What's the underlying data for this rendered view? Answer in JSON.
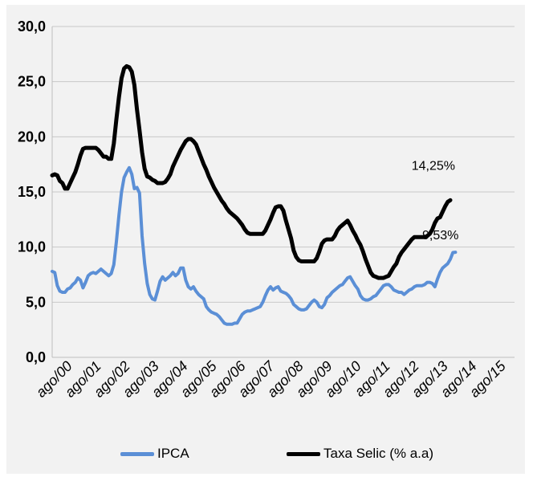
{
  "chart_data": {
    "type": "line",
    "yticks": [
      "0,0",
      "5,0",
      "10,0",
      "15,0",
      "20,0",
      "25,0",
      "30,0"
    ],
    "ylim": [
      0,
      30
    ],
    "grid": "horizontal",
    "xticks": [
      "ago/00",
      "ago/01",
      "ago/02",
      "ago/03",
      "ago/04",
      "ago/05",
      "ago/06",
      "ago/07",
      "ago/08",
      "ago/09",
      "ago/10",
      "ago/11",
      "ago/12",
      "ago/13",
      "ago/14",
      "ago/15"
    ],
    "xlim": [
      0,
      180
    ],
    "legend_position": "bottom",
    "series": [
      {
        "name": "IPCA",
        "color": "#5b8fd6",
        "points": [
          [
            0,
            7.8
          ],
          [
            1,
            7.7
          ],
          [
            2,
            6.5
          ],
          [
            3,
            6.0
          ],
          [
            4,
            5.9
          ],
          [
            5,
            5.9
          ],
          [
            6,
            6.2
          ],
          [
            7,
            6.3
          ],
          [
            8,
            6.6
          ],
          [
            9,
            6.8
          ],
          [
            10,
            7.2
          ],
          [
            11,
            7.0
          ],
          [
            12,
            6.3
          ],
          [
            13,
            6.8
          ],
          [
            14,
            7.4
          ],
          [
            15,
            7.6
          ],
          [
            16,
            7.7
          ],
          [
            17,
            7.6
          ],
          [
            18,
            7.8
          ],
          [
            19,
            8.0
          ],
          [
            20,
            7.8
          ],
          [
            21,
            7.6
          ],
          [
            22,
            7.4
          ],
          [
            23,
            7.6
          ],
          [
            24,
            8.4
          ],
          [
            25,
            10.5
          ],
          [
            26,
            12.9
          ],
          [
            27,
            15.0
          ],
          [
            28,
            16.3
          ],
          [
            29,
            16.8
          ],
          [
            30,
            17.2
          ],
          [
            31,
            16.6
          ],
          [
            32,
            15.3
          ],
          [
            33,
            15.4
          ],
          [
            34,
            14.9
          ],
          [
            35,
            11.0
          ],
          [
            36,
            8.5
          ],
          [
            37,
            6.7
          ],
          [
            38,
            5.7
          ],
          [
            39,
            5.3
          ],
          [
            40,
            5.2
          ],
          [
            41,
            6.0
          ],
          [
            42,
            6.9
          ],
          [
            43,
            7.3
          ],
          [
            44,
            7.0
          ],
          [
            45,
            7.2
          ],
          [
            46,
            7.4
          ],
          [
            47,
            7.7
          ],
          [
            48,
            7.4
          ],
          [
            49,
            7.6
          ],
          [
            50,
            8.1
          ],
          [
            51,
            8.1
          ],
          [
            52,
            7.0
          ],
          [
            53,
            6.4
          ],
          [
            54,
            6.2
          ],
          [
            55,
            6.4
          ],
          [
            56,
            6.0
          ],
          [
            57,
            5.7
          ],
          [
            58,
            5.5
          ],
          [
            59,
            5.3
          ],
          [
            60,
            4.6
          ],
          [
            61,
            4.3
          ],
          [
            62,
            4.1
          ],
          [
            63,
            4.0
          ],
          [
            64,
            3.9
          ],
          [
            65,
            3.7
          ],
          [
            66,
            3.4
          ],
          [
            67,
            3.1
          ],
          [
            68,
            3.0
          ],
          [
            69,
            3.0
          ],
          [
            70,
            3.0
          ],
          [
            71,
            3.1
          ],
          [
            72,
            3.1
          ],
          [
            73,
            3.5
          ],
          [
            74,
            3.9
          ],
          [
            75,
            4.1
          ],
          [
            76,
            4.2
          ],
          [
            77,
            4.2
          ],
          [
            78,
            4.3
          ],
          [
            79,
            4.4
          ],
          [
            80,
            4.5
          ],
          [
            81,
            4.6
          ],
          [
            82,
            5.0
          ],
          [
            83,
            5.6
          ],
          [
            84,
            6.1
          ],
          [
            85,
            6.4
          ],
          [
            86,
            6.1
          ],
          [
            87,
            6.3
          ],
          [
            88,
            6.4
          ],
          [
            89,
            6.0
          ],
          [
            90,
            5.9
          ],
          [
            91,
            5.8
          ],
          [
            92,
            5.6
          ],
          [
            93,
            5.3
          ],
          [
            94,
            4.8
          ],
          [
            95,
            4.6
          ],
          [
            96,
            4.4
          ],
          [
            97,
            4.3
          ],
          [
            98,
            4.3
          ],
          [
            99,
            4.4
          ],
          [
            100,
            4.7
          ],
          [
            101,
            5.0
          ],
          [
            102,
            5.2
          ],
          [
            103,
            5.0
          ],
          [
            104,
            4.6
          ],
          [
            105,
            4.5
          ],
          [
            106,
            4.8
          ],
          [
            107,
            5.4
          ],
          [
            108,
            5.6
          ],
          [
            109,
            5.9
          ],
          [
            110,
            6.1
          ],
          [
            111,
            6.3
          ],
          [
            112,
            6.5
          ],
          [
            113,
            6.6
          ],
          [
            114,
            6.9
          ],
          [
            115,
            7.2
          ],
          [
            116,
            7.3
          ],
          [
            117,
            6.9
          ],
          [
            118,
            6.5
          ],
          [
            119,
            6.2
          ],
          [
            120,
            5.6
          ],
          [
            121,
            5.3
          ],
          [
            122,
            5.2
          ],
          [
            123,
            5.2
          ],
          [
            124,
            5.3
          ],
          [
            125,
            5.5
          ],
          [
            126,
            5.6
          ],
          [
            127,
            5.9
          ],
          [
            128,
            6.2
          ],
          [
            129,
            6.5
          ],
          [
            130,
            6.6
          ],
          [
            131,
            6.6
          ],
          [
            132,
            6.4
          ],
          [
            133,
            6.1
          ],
          [
            134,
            6.0
          ],
          [
            135,
            5.9
          ],
          [
            136,
            5.9
          ],
          [
            137,
            5.7
          ],
          [
            138,
            5.9
          ],
          [
            139,
            6.1
          ],
          [
            140,
            6.2
          ],
          [
            141,
            6.4
          ],
          [
            142,
            6.5
          ],
          [
            143,
            6.5
          ],
          [
            144,
            6.5
          ],
          [
            145,
            6.6
          ],
          [
            146,
            6.8
          ],
          [
            147,
            6.8
          ],
          [
            148,
            6.7
          ],
          [
            149,
            6.4
          ],
          [
            150,
            7.1
          ],
          [
            151,
            7.7
          ],
          [
            152,
            8.1
          ],
          [
            153,
            8.3
          ],
          [
            154,
            8.5
          ],
          [
            155,
            8.9
          ],
          [
            156,
            9.5
          ],
          [
            157,
            9.53
          ]
        ]
      },
      {
        "name": "Taxa Selic (% a.a)",
        "color": "#000000",
        "points": [
          [
            0,
            16.5
          ],
          [
            1,
            16.6
          ],
          [
            2,
            16.5
          ],
          [
            3,
            16.0
          ],
          [
            4,
            15.8
          ],
          [
            5,
            15.3
          ],
          [
            6,
            15.3
          ],
          [
            7,
            15.8
          ],
          [
            8,
            16.3
          ],
          [
            9,
            16.8
          ],
          [
            10,
            17.5
          ],
          [
            11,
            18.3
          ],
          [
            12,
            18.9
          ],
          [
            13,
            19.0
          ],
          [
            14,
            19.0
          ],
          [
            15,
            19.0
          ],
          [
            16,
            19.0
          ],
          [
            17,
            19.0
          ],
          [
            18,
            18.8
          ],
          [
            19,
            18.5
          ],
          [
            20,
            18.2
          ],
          [
            21,
            18.2
          ],
          [
            22,
            18.0
          ],
          [
            23,
            18.0
          ],
          [
            24,
            19.4
          ],
          [
            25,
            21.6
          ],
          [
            26,
            23.6
          ],
          [
            27,
            25.3
          ],
          [
            28,
            26.2
          ],
          [
            29,
            26.4
          ],
          [
            30,
            26.3
          ],
          [
            31,
            25.9
          ],
          [
            32,
            24.7
          ],
          [
            33,
            22.5
          ],
          [
            34,
            20.6
          ],
          [
            35,
            18.6
          ],
          [
            36,
            17.1
          ],
          [
            37,
            16.4
          ],
          [
            38,
            16.3
          ],
          [
            39,
            16.1
          ],
          [
            40,
            16.0
          ],
          [
            41,
            15.8
          ],
          [
            42,
            15.8
          ],
          [
            43,
            15.8
          ],
          [
            44,
            15.9
          ],
          [
            45,
            16.2
          ],
          [
            46,
            16.6
          ],
          [
            47,
            17.3
          ],
          [
            48,
            17.8
          ],
          [
            49,
            18.3
          ],
          [
            50,
            18.8
          ],
          [
            51,
            19.2
          ],
          [
            52,
            19.6
          ],
          [
            53,
            19.8
          ],
          [
            54,
            19.8
          ],
          [
            55,
            19.6
          ],
          [
            56,
            19.3
          ],
          [
            57,
            18.7
          ],
          [
            58,
            18.1
          ],
          [
            59,
            17.5
          ],
          [
            60,
            17.0
          ],
          [
            61,
            16.4
          ],
          [
            62,
            15.9
          ],
          [
            63,
            15.4
          ],
          [
            64,
            15.0
          ],
          [
            65,
            14.6
          ],
          [
            66,
            14.2
          ],
          [
            67,
            13.9
          ],
          [
            68,
            13.5
          ],
          [
            69,
            13.2
          ],
          [
            70,
            13.0
          ],
          [
            71,
            12.8
          ],
          [
            72,
            12.6
          ],
          [
            73,
            12.3
          ],
          [
            74,
            12.0
          ],
          [
            75,
            11.6
          ],
          [
            76,
            11.3
          ],
          [
            77,
            11.2
          ],
          [
            78,
            11.2
          ],
          [
            79,
            11.2
          ],
          [
            80,
            11.2
          ],
          [
            81,
            11.2
          ],
          [
            82,
            11.2
          ],
          [
            83,
            11.5
          ],
          [
            84,
            12.0
          ],
          [
            85,
            12.5
          ],
          [
            86,
            13.1
          ],
          [
            87,
            13.6
          ],
          [
            88,
            13.7
          ],
          [
            89,
            13.7
          ],
          [
            90,
            13.3
          ],
          [
            91,
            12.4
          ],
          [
            92,
            11.6
          ],
          [
            93,
            10.8
          ],
          [
            94,
            9.7
          ],
          [
            95,
            9.1
          ],
          [
            96,
            8.8
          ],
          [
            97,
            8.7
          ],
          [
            98,
            8.7
          ],
          [
            99,
            8.7
          ],
          [
            100,
            8.7
          ],
          [
            101,
            8.7
          ],
          [
            102,
            8.7
          ],
          [
            103,
            9.0
          ],
          [
            104,
            9.6
          ],
          [
            105,
            10.3
          ],
          [
            106,
            10.6
          ],
          [
            107,
            10.7
          ],
          [
            108,
            10.7
          ],
          [
            109,
            10.7
          ],
          [
            110,
            11.0
          ],
          [
            111,
            11.5
          ],
          [
            112,
            11.8
          ],
          [
            113,
            12.0
          ],
          [
            114,
            12.2
          ],
          [
            115,
            12.4
          ],
          [
            116,
            12.0
          ],
          [
            117,
            11.5
          ],
          [
            118,
            11.1
          ],
          [
            119,
            10.6
          ],
          [
            120,
            10.2
          ],
          [
            121,
            9.6
          ],
          [
            122,
            8.9
          ],
          [
            123,
            8.3
          ],
          [
            124,
            7.7
          ],
          [
            125,
            7.4
          ],
          [
            126,
            7.3
          ],
          [
            127,
            7.2
          ],
          [
            128,
            7.2
          ],
          [
            129,
            7.2
          ],
          [
            130,
            7.3
          ],
          [
            131,
            7.4
          ],
          [
            132,
            7.8
          ],
          [
            133,
            8.2
          ],
          [
            134,
            8.5
          ],
          [
            135,
            9.1
          ],
          [
            136,
            9.5
          ],
          [
            137,
            9.8
          ],
          [
            138,
            10.1
          ],
          [
            139,
            10.4
          ],
          [
            140,
            10.7
          ],
          [
            141,
            10.9
          ],
          [
            142,
            10.9
          ],
          [
            143,
            10.9
          ],
          [
            144,
            10.9
          ],
          [
            145,
            10.9
          ],
          [
            146,
            11.0
          ],
          [
            147,
            11.2
          ],
          [
            148,
            11.6
          ],
          [
            149,
            12.2
          ],
          [
            150,
            12.6
          ],
          [
            151,
            12.7
          ],
          [
            152,
            13.2
          ],
          [
            153,
            13.7
          ],
          [
            154,
            14.1
          ],
          [
            155,
            14.25
          ]
        ]
      }
    ],
    "annotations": [
      {
        "text": "14,25%",
        "x": 155,
        "y": 14.25,
        "series": "Taxa Selic (% a.a)"
      },
      {
        "text": "9,53%",
        "x": 157,
        "y": 9.53,
        "series": "IPCA"
      }
    ]
  }
}
